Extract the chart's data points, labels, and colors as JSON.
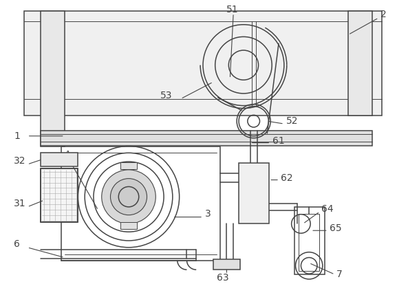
{
  "bg_color": "#ffffff",
  "lc": "#444444",
  "lw": 1.1,
  "tlw": 0.7,
  "fs": 10,
  "fig_w": 5.93,
  "fig_h": 4.13,
  "dpi": 100
}
